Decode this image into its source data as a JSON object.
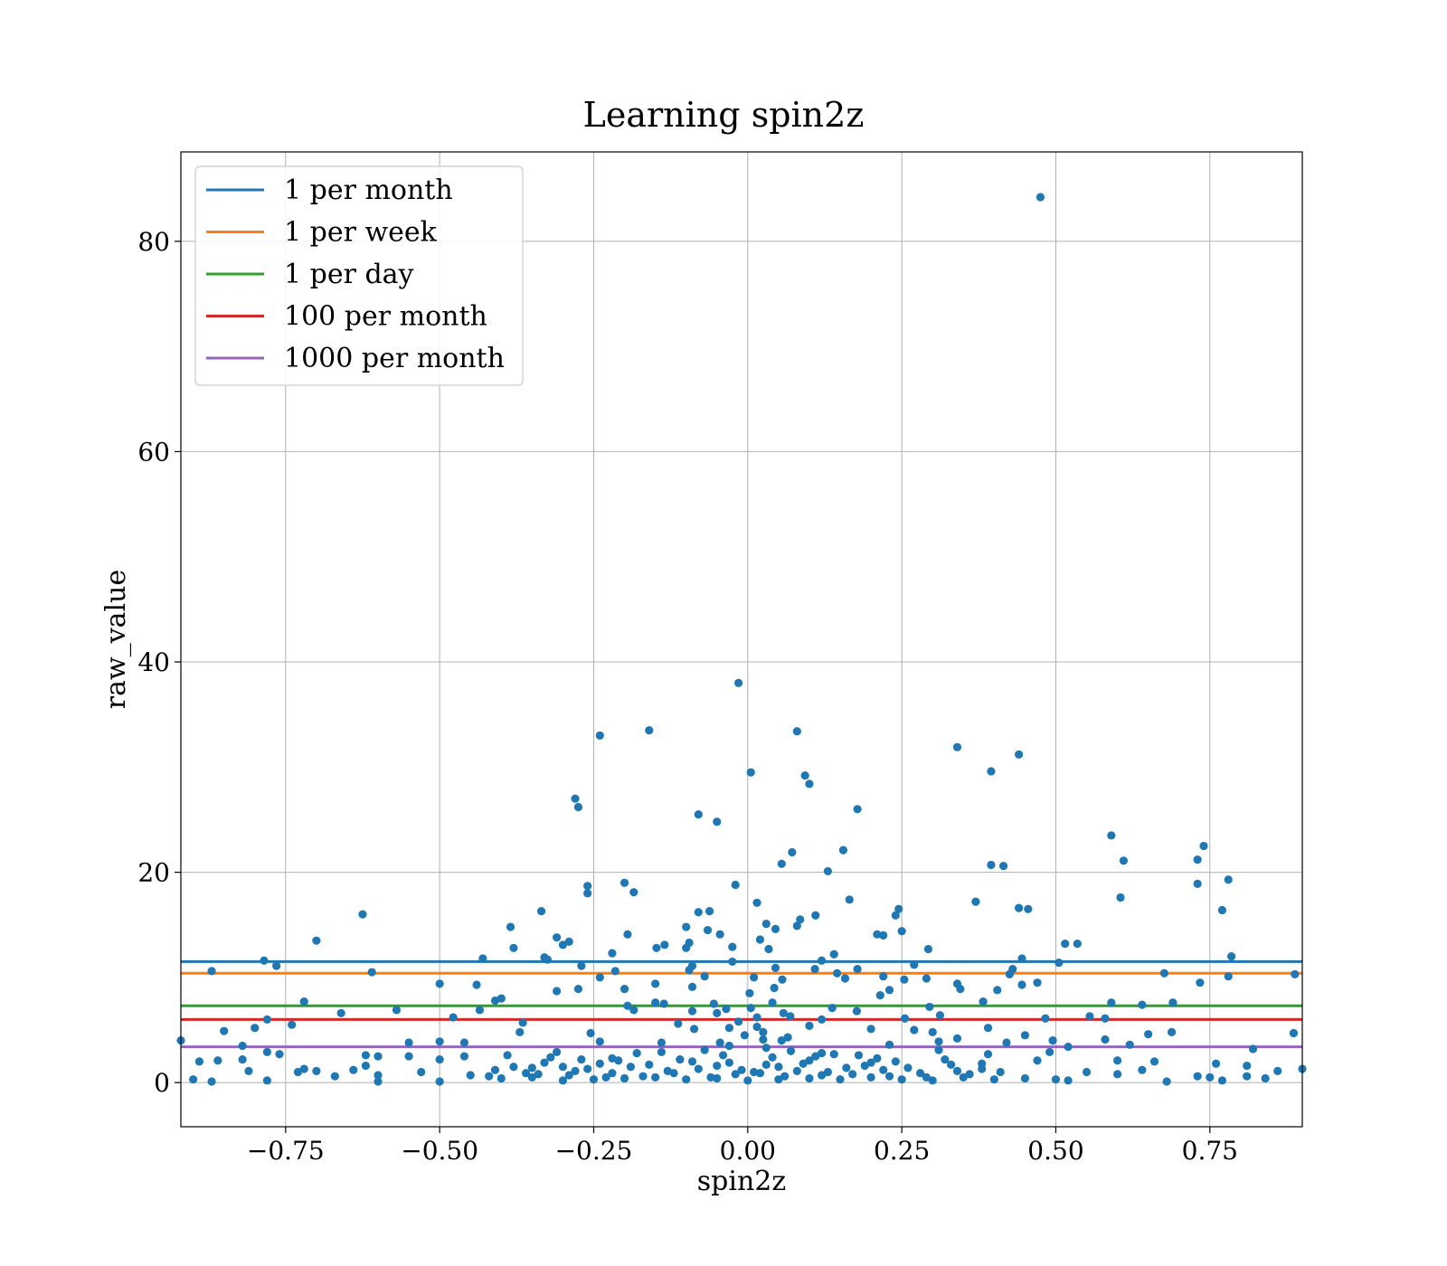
{
  "chart_data": {
    "type": "scatter",
    "title": "Learning spin2z",
    "xlabel": "spin2z",
    "ylabel": "raw_value",
    "xlim": [
      -0.92,
      0.9
    ],
    "ylim": [
      -4.2,
      88.5
    ],
    "xticks": [
      -0.75,
      -0.5,
      -0.25,
      0.0,
      0.25,
      0.5,
      0.75
    ],
    "xtick_labels": [
      "−0.75",
      "−0.50",
      "−0.25",
      "0.00",
      "0.25",
      "0.50",
      "0.75"
    ],
    "yticks": [
      0,
      20,
      40,
      60,
      80
    ],
    "ytick_labels": [
      "0",
      "20",
      "40",
      "60",
      "80"
    ],
    "grid": true,
    "legend_position": "top-left",
    "point_color": "#1f77b4",
    "hlines": [
      {
        "name": "1 per month",
        "y": 11.5,
        "color": "#1f77b4"
      },
      {
        "name": "1 per week",
        "y": 10.4,
        "color": "#ff7f0e"
      },
      {
        "name": "1 per day",
        "y": 7.3,
        "color": "#2ca02c"
      },
      {
        "name": "100 per month",
        "y": 6.0,
        "color": "#d62728"
      },
      {
        "name": "1000 per month",
        "y": 3.4,
        "color": "#9467bd"
      }
    ],
    "points": [
      [
        0.475,
        84.2
      ],
      [
        -0.015,
        38.0
      ],
      [
        -0.16,
        33.5
      ],
      [
        -0.24,
        33.0
      ],
      [
        0.08,
        33.4
      ],
      [
        0.34,
        31.9
      ],
      [
        0.44,
        31.2
      ],
      [
        0.005,
        29.5
      ],
      [
        0.395,
        29.6
      ],
      [
        0.093,
        29.2
      ],
      [
        0.1,
        28.4
      ],
      [
        -0.28,
        27.0
      ],
      [
        -0.275,
        26.2
      ],
      [
        0.178,
        26.0
      ],
      [
        -0.08,
        25.5
      ],
      [
        -0.05,
        24.8
      ],
      [
        0.59,
        23.5
      ],
      [
        0.74,
        22.5
      ],
      [
        0.155,
        22.1
      ],
      [
        0.072,
        21.9
      ],
      [
        0.73,
        21.2
      ],
      [
        0.61,
        21.1
      ],
      [
        0.055,
        20.8
      ],
      [
        0.395,
        20.7
      ],
      [
        0.415,
        20.6
      ],
      [
        0.13,
        20.1
      ],
      [
        0.78,
        19.3
      ],
      [
        -0.2,
        19.0
      ],
      [
        0.73,
        18.9
      ],
      [
        -0.02,
        18.8
      ],
      [
        -0.26,
        18.7
      ],
      [
        -0.26,
        18.0
      ],
      [
        -0.185,
        18.1
      ],
      [
        0.165,
        17.4
      ],
      [
        0.605,
        17.6
      ],
      [
        0.37,
        17.2
      ],
      [
        0.015,
        17.1
      ],
      [
        0.245,
        16.5
      ],
      [
        0.44,
        16.6
      ],
      [
        0.455,
        16.5
      ],
      [
        0.77,
        16.4
      ],
      [
        -0.08,
        16.2
      ],
      [
        -0.062,
        16.3
      ],
      [
        -0.335,
        16.3
      ],
      [
        -0.625,
        16.0
      ],
      [
        0.24,
        15.9
      ],
      [
        0.11,
        15.9
      ],
      [
        0.085,
        15.5
      ],
      [
        0.03,
        15.1
      ],
      [
        0.045,
        14.6
      ],
      [
        0.08,
        14.9
      ],
      [
        0.22,
        14.0
      ],
      [
        0.25,
        14.4
      ],
      [
        -0.385,
        14.8
      ],
      [
        -0.1,
        14.8
      ],
      [
        -0.065,
        14.5
      ],
      [
        -0.045,
        14.1
      ],
      [
        -0.31,
        13.8
      ],
      [
        -0.195,
        14.1
      ],
      [
        0.02,
        13.6
      ],
      [
        -0.7,
        13.5
      ],
      [
        -0.135,
        13.1
      ],
      [
        -0.29,
        13.4
      ],
      [
        -0.3,
        13.1
      ],
      [
        -0.148,
        12.8
      ],
      [
        -0.1,
        12.8
      ],
      [
        -0.38,
        12.8
      ],
      [
        0.515,
        13.2
      ],
      [
        0.535,
        13.2
      ],
      [
        0.21,
        14.1
      ],
      [
        -0.025,
        12.9
      ],
      [
        0.034,
        12.7
      ],
      [
        -0.095,
        13.3
      ],
      [
        -0.22,
        12.3
      ],
      [
        0.14,
        12.2
      ],
      [
        0.293,
        12.7
      ],
      [
        -0.33,
        11.9
      ],
      [
        -0.325,
        11.7
      ],
      [
        -0.43,
        11.8
      ],
      [
        0.785,
        12.0
      ],
      [
        0.445,
        11.8
      ],
      [
        -0.785,
        11.6
      ],
      [
        0.505,
        11.4
      ],
      [
        -0.765,
        11.1
      ],
      [
        -0.27,
        11.1
      ],
      [
        -0.025,
        11.5
      ],
      [
        -0.09,
        11.1
      ],
      [
        0.12,
        11.6
      ],
      [
        0.27,
        11.2
      ],
      [
        -0.095,
        10.7
      ],
      [
        0.045,
        10.9
      ],
      [
        0.109,
        10.8
      ],
      [
        0.43,
        10.8
      ],
      [
        0.178,
        10.8
      ],
      [
        -0.61,
        10.5
      ],
      [
        -0.215,
        10.6
      ],
      [
        -0.87,
        10.6
      ],
      [
        -0.07,
        10.1
      ],
      [
        0.01,
        10.0
      ],
      [
        0.145,
        10.4
      ],
      [
        0.676,
        10.4
      ],
      [
        0.78,
        10.1
      ],
      [
        0.888,
        10.3
      ],
      [
        0.425,
        10.3
      ],
      [
        0.158,
        9.9
      ],
      [
        0.22,
        10.1
      ],
      [
        -0.24,
        10.0
      ],
      [
        0.056,
        9.8
      ],
      [
        0.734,
        9.5
      ],
      [
        0.254,
        9.8
      ],
      [
        0.29,
        9.9
      ],
      [
        -0.15,
        9.4
      ],
      [
        0.34,
        9.4
      ],
      [
        0.445,
        9.3
      ],
      [
        0.47,
        9.5
      ],
      [
        -0.5,
        9.4
      ],
      [
        -0.44,
        9.3
      ],
      [
        -0.09,
        9.1
      ],
      [
        0.043,
        9.0
      ],
      [
        -0.2,
        8.9
      ],
      [
        -0.275,
        8.9
      ],
      [
        0.23,
        8.8
      ],
      [
        0.345,
        8.9
      ],
      [
        0.405,
        8.8
      ],
      [
        -0.31,
        8.7
      ],
      [
        0.003,
        8.5
      ],
      [
        0.215,
        8.3
      ],
      [
        -0.4,
        8.0
      ],
      [
        -0.41,
        7.8
      ],
      [
        0.382,
        7.7
      ],
      [
        0.69,
        7.6
      ],
      [
        -0.72,
        7.7
      ],
      [
        0.64,
        7.4
      ],
      [
        0.59,
        7.6
      ],
      [
        -0.195,
        7.3
      ],
      [
        -0.15,
        7.6
      ],
      [
        -0.136,
        7.5
      ],
      [
        0.137,
        7.1
      ],
      [
        0.005,
        7.1
      ],
      [
        -0.055,
        7.5
      ],
      [
        0.295,
        7.2
      ],
      [
        -0.66,
        6.6
      ],
      [
        -0.57,
        6.9
      ],
      [
        -0.435,
        6.9
      ],
      [
        -0.185,
        6.9
      ],
      [
        -0.09,
        6.8
      ],
      [
        -0.05,
        6.6
      ],
      [
        0.058,
        6.6
      ],
      [
        0.069,
        6.3
      ],
      [
        0.12,
        6.0
      ],
      [
        0.177,
        6.8
      ],
      [
        0.255,
        6.1
      ],
      [
        0.312,
        6.4
      ],
      [
        0.483,
        6.1
      ],
      [
        0.555,
        6.3
      ],
      [
        0.58,
        6.1
      ],
      [
        -0.78,
        6.0
      ],
      [
        -0.478,
        6.2
      ],
      [
        -0.365,
        5.7
      ],
      [
        -0.113,
        5.6
      ],
      [
        -0.087,
        5.1
      ],
      [
        -0.03,
        5.2
      ],
      [
        0.015,
        5.3
      ],
      [
        0.1,
        5.4
      ],
      [
        0.2,
        5.1
      ],
      [
        0.27,
        5.0
      ],
      [
        0.3,
        4.8
      ],
      [
        -0.74,
        5.5
      ],
      [
        -0.85,
        4.9
      ],
      [
        -0.8,
        5.2
      ],
      [
        0.39,
        5.2
      ],
      [
        0.688,
        4.8
      ],
      [
        0.886,
        4.7
      ],
      [
        0.65,
        4.6
      ],
      [
        -0.255,
        4.7
      ],
      [
        -0.37,
        4.8
      ],
      [
        0.45,
        4.5
      ],
      [
        0.34,
        4.2
      ],
      [
        0.025,
        4.1
      ],
      [
        0.065,
        4.3
      ],
      [
        -0.24,
        3.9
      ],
      [
        -0.5,
        3.9
      ],
      [
        -0.14,
        3.8
      ],
      [
        -0.46,
        3.8
      ],
      [
        0.42,
        3.8
      ],
      [
        0.495,
        4.0
      ],
      [
        0.58,
        4.1
      ],
      [
        0.62,
        3.6
      ],
      [
        -0.55,
        3.8
      ],
      [
        -0.82,
        3.5
      ],
      [
        0.31,
        3.9
      ],
      [
        0.23,
        3.6
      ],
      [
        -0.92,
        4.0
      ],
      [
        0.82,
        3.2
      ],
      [
        0.52,
        3.4
      ],
      [
        0.49,
        2.9
      ],
      [
        0.12,
        2.8
      ],
      [
        -0.62,
        2.6
      ],
      [
        -0.6,
        2.5
      ],
      [
        -0.78,
        2.9
      ],
      [
        -0.76,
        2.7
      ],
      [
        -0.55,
        2.5
      ],
      [
        -0.27,
        2.2
      ],
      [
        -0.22,
        2.3
      ],
      [
        -0.5,
        2.2
      ],
      [
        -0.46,
        2.5
      ],
      [
        0.6,
        2.1
      ],
      [
        0.66,
        2.0
      ],
      [
        0.47,
        2.1
      ],
      [
        -0.86,
        2.1
      ],
      [
        -0.89,
        2.0
      ],
      [
        -0.82,
        2.2
      ],
      [
        0.38,
        1.8
      ],
      [
        0.2,
        1.9
      ],
      [
        0.1,
        2.1
      ],
      [
        -0.05,
        1.6
      ],
      [
        -0.03,
        1.9
      ],
      [
        0.03,
        1.7
      ],
      [
        0.05,
        1.5
      ],
      [
        0.76,
        1.8
      ],
      [
        0.81,
        1.6
      ],
      [
        -0.3,
        1.5
      ],
      [
        -0.35,
        1.4
      ],
      [
        -0.62,
        1.6
      ],
      [
        -0.64,
        1.2
      ],
      [
        -0.72,
        1.3
      ],
      [
        0.86,
        1.1
      ],
      [
        0.9,
        1.3
      ],
      [
        -0.81,
        1.1
      ],
      [
        -0.73,
        1.0
      ],
      [
        -0.7,
        1.1
      ],
      [
        -0.53,
        1.0
      ],
      [
        0.55,
        1.0
      ],
      [
        0.6,
        0.8
      ],
      [
        0.64,
        1.2
      ],
      [
        -0.6,
        0.7
      ],
      [
        -0.67,
        0.6
      ],
      [
        -0.45,
        0.7
      ],
      [
        -0.42,
        0.6
      ],
      [
        0.73,
        0.6
      ],
      [
        0.75,
        0.5
      ],
      [
        0.81,
        0.6
      ],
      [
        0.84,
        0.4
      ],
      [
        -0.9,
        0.3
      ],
      [
        -0.87,
        0.1
      ],
      [
        -0.78,
        0.2
      ],
      [
        -0.6,
        0.1
      ],
      [
        -0.5,
        0.1
      ],
      [
        0.5,
        0.3
      ],
      [
        0.52,
        0.2
      ],
      [
        0.68,
        0.1
      ],
      [
        0.77,
        0.2
      ],
      [
        -0.2,
        0.4
      ],
      [
        -0.15,
        0.5
      ],
      [
        -0.1,
        0.3
      ],
      [
        -0.05,
        0.4
      ],
      [
        0.0,
        0.2
      ],
      [
        0.05,
        0.3
      ],
      [
        0.1,
        0.4
      ],
      [
        0.15,
        0.3
      ],
      [
        0.2,
        0.5
      ],
      [
        0.25,
        0.3
      ],
      [
        0.3,
        0.2
      ],
      [
        0.35,
        0.5
      ],
      [
        0.4,
        0.3
      ],
      [
        0.45,
        0.4
      ],
      [
        -0.25,
        0.3
      ],
      [
        -0.3,
        0.2
      ],
      [
        -0.35,
        0.5
      ],
      [
        -0.4,
        0.4
      ],
      [
        -0.02,
        0.8
      ],
      [
        0.02,
        0.9
      ],
      [
        -0.01,
        1.2
      ],
      [
        0.01,
        1.0
      ],
      [
        -0.04,
        2.6
      ],
      [
        0.04,
        2.4
      ],
      [
        -0.08,
        1.3
      ],
      [
        0.08,
        1.1
      ],
      [
        -0.12,
        0.9
      ],
      [
        0.12,
        0.7
      ],
      [
        -0.16,
        1.7
      ],
      [
        0.16,
        1.4
      ],
      [
        -0.18,
        2.8
      ],
      [
        0.18,
        2.6
      ],
      [
        -0.22,
        0.9
      ],
      [
        0.22,
        1.2
      ],
      [
        -0.24,
        1.8
      ],
      [
        0.24,
        2.0
      ],
      [
        -0.28,
        1.1
      ],
      [
        0.28,
        0.9
      ],
      [
        -0.32,
        2.4
      ],
      [
        0.32,
        2.2
      ],
      [
        -0.34,
        0.8
      ],
      [
        0.34,
        1.1
      ],
      [
        -0.38,
        1.5
      ],
      [
        0.38,
        1.3
      ],
      [
        -0.07,
        3.1
      ],
      [
        0.07,
        3.0
      ],
      [
        -0.11,
        2.2
      ],
      [
        0.11,
        2.5
      ],
      [
        -0.13,
        1.1
      ],
      [
        0.13,
        1.0
      ],
      [
        -0.03,
        3.5
      ],
      [
        0.03,
        3.3
      ],
      [
        -0.06,
        0.5
      ],
      [
        0.06,
        0.6
      ],
      [
        -0.09,
        2.0
      ],
      [
        0.09,
        1.8
      ],
      [
        -0.14,
        2.9
      ],
      [
        0.14,
        2.7
      ],
      [
        -0.17,
        0.6
      ],
      [
        0.17,
        0.8
      ],
      [
        -0.19,
        1.5
      ],
      [
        0.19,
        1.6
      ],
      [
        -0.21,
        2.1
      ],
      [
        0.21,
        2.3
      ],
      [
        -0.23,
        0.5
      ],
      [
        0.23,
        0.6
      ],
      [
        -0.26,
        1.3
      ],
      [
        0.26,
        1.4
      ],
      [
        -0.29,
        0.7
      ],
      [
        0.29,
        0.5
      ],
      [
        -0.31,
        2.9
      ],
      [
        0.31,
        3.1
      ],
      [
        -0.33,
        1.9
      ],
      [
        0.33,
        1.7
      ],
      [
        -0.36,
        0.9
      ],
      [
        0.36,
        0.8
      ],
      [
        -0.39,
        2.6
      ],
      [
        0.39,
        2.7
      ],
      [
        -0.41,
        1.2
      ],
      [
        0.41,
        1.0
      ],
      [
        -0.015,
        5.8
      ],
      [
        0.015,
        6.2
      ],
      [
        -0.005,
        4.5
      ],
      [
        0.025,
        4.8
      ],
      [
        -0.035,
        7.0
      ],
      [
        0.04,
        7.6
      ],
      [
        -0.045,
        3.8
      ],
      [
        0.055,
        4.0
      ]
    ]
  }
}
